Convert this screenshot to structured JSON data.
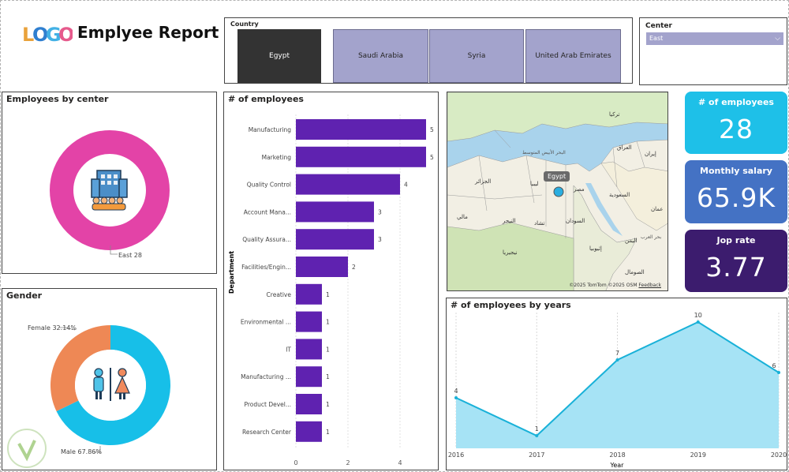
{
  "header": {
    "logo_text": "LOGO",
    "title": "Emplyee Report"
  },
  "country_slicer": {
    "label": "Country",
    "options": [
      "Egypt",
      "Saudi Arabia",
      "Syria",
      "United Arab Emirates"
    ],
    "selected": "Egypt"
  },
  "center_slicer": {
    "label": "Center",
    "value": "East"
  },
  "employees_by_center": {
    "title": "Employees by center",
    "data_label": "East 28"
  },
  "gender": {
    "title": "Gender",
    "female_label": "Female 32.14%",
    "male_label": "Male 67.86%"
  },
  "map": {
    "bubble_label": "Egypt",
    "credit": "©2025 TomTom ©2025 OSM",
    "feedback": "Feedback",
    "labels": [
      "البحر الأبيض المتوسط",
      "مصر",
      "ليبيا",
      "السودان",
      "السعودية",
      "الجزائر",
      "تركيا",
      "العراق",
      "إيران",
      "اليمن",
      "إثيوبيا",
      "الصومال",
      "مالي",
      "النيجر",
      "تشاد",
      "نيجيريا",
      "بحر العرب",
      "عمان"
    ]
  },
  "kpis": [
    {
      "label": "# of employees",
      "value": "28",
      "color": "#1ec0e8"
    },
    {
      "label": "Monthly salary",
      "value": "65.9K",
      "color": "#4472c4"
    },
    {
      "label": "Jop rate",
      "value": "3.77",
      "color": "#3c1c6e"
    }
  ],
  "colors": {
    "bar": "#5f22b0",
    "donut_center": "#e343a7",
    "female": "#ee8855",
    "male": "#17bfe8",
    "area_fill": "#a6e3f5",
    "area_line": "#19b1d8"
  },
  "chart_data": [
    {
      "type": "bar",
      "title": "# of employees",
      "ylabel": "Department",
      "categories": [
        "Manufacturing",
        "Marketing",
        "Quality Control",
        "Account Mana...",
        "Quality Assura...",
        "Facilities/Engin...",
        "Creative",
        "Environmental ...",
        "IT",
        "Manufacturing ...",
        "Product Devel...",
        "Research Center"
      ],
      "values": [
        5,
        5,
        4,
        3,
        3,
        2,
        1,
        1,
        1,
        1,
        1,
        1
      ],
      "xticks": [
        "0",
        "2",
        "4"
      ],
      "xlim": [
        0,
        5.5
      ]
    },
    {
      "type": "pie",
      "title": "Employees by center",
      "categories": [
        "East"
      ],
      "values": [
        28
      ]
    },
    {
      "type": "pie",
      "title": "Gender",
      "categories": [
        "Female",
        "Male"
      ],
      "values": [
        32.14,
        67.86
      ]
    },
    {
      "type": "area",
      "title": "# of employees by years",
      "xlabel": "Year",
      "x": [
        "2016",
        "2017",
        "2018",
        "2019",
        "2020"
      ],
      "values": [
        4,
        1,
        7,
        10,
        6
      ],
      "ylim": [
        0,
        10.5
      ]
    }
  ]
}
